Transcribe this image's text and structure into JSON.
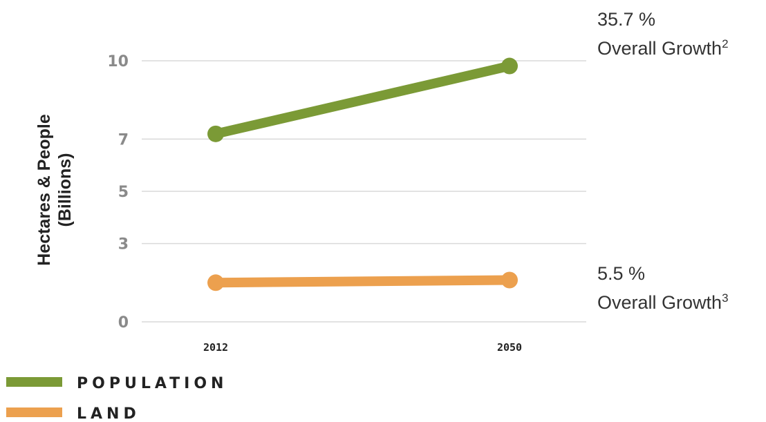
{
  "chart_data": {
    "type": "line",
    "categories": [
      "2012",
      "2050"
    ],
    "ylabel": [
      "Hectares & People",
      "(Billions)"
    ],
    "yticks": [
      0,
      3,
      5,
      7,
      10
    ],
    "ylim": [
      0,
      10
    ],
    "grid": true,
    "legend_position": "bottom-left",
    "series": [
      {
        "name": "POPULATION",
        "color": "#7b9a36",
        "values": [
          7.2,
          9.8
        ],
        "annotation": {
          "value": "35.7 %",
          "text": "Overall Growth",
          "superscript": "2"
        }
      },
      {
        "name": "LAND",
        "color": "#eca04e",
        "values": [
          1.5,
          1.6
        ],
        "annotation": {
          "value": "5.5 %",
          "text": "Overall Growth",
          "superscript": "3"
        }
      }
    ]
  }
}
